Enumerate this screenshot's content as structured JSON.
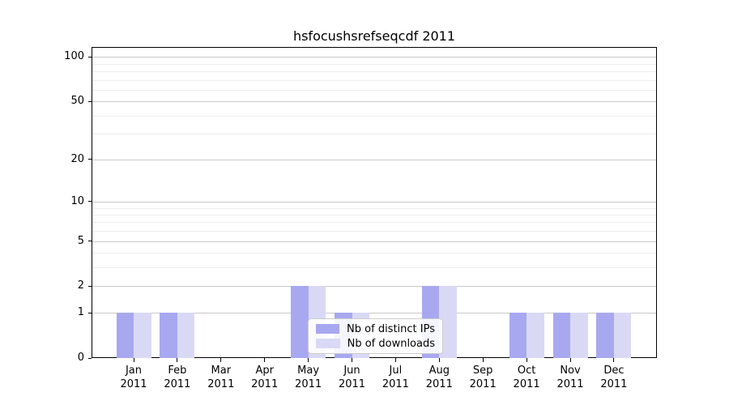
{
  "title": "hsfocushsrefseqcdf 2011",
  "legend": {
    "items": [
      {
        "label": "Nb of distinct IPs",
        "color": "#a8a8f0"
      },
      {
        "label": "Nb of downloads",
        "color": "#d9d9f6"
      }
    ]
  },
  "axes": {
    "y_scale": "log1p",
    "y_major_ticks": [
      0,
      1,
      2,
      5,
      10,
      20,
      50,
      100
    ],
    "y_minor_gridlines": [
      3,
      4,
      6,
      7,
      8,
      9,
      30,
      40,
      60,
      70,
      80,
      90
    ],
    "x_month_labels": [
      "Jan",
      "Feb",
      "Mar",
      "Apr",
      "May",
      "Jun",
      "Jul",
      "Aug",
      "Sep",
      "Oct",
      "Nov",
      "Dec"
    ],
    "x_year_label": "2011"
  },
  "chart_data": {
    "type": "bar",
    "title": "hsfocushsrefseqcdf 2011",
    "categories": [
      "Jan 2011",
      "Feb 2011",
      "Mar 2011",
      "Apr 2011",
      "May 2011",
      "Jun 2011",
      "Jul 2011",
      "Aug 2011",
      "Sep 2011",
      "Oct 2011",
      "Nov 2011",
      "Dec 2011"
    ],
    "series": [
      {
        "name": "Nb of distinct IPs",
        "color": "#a8a8f0",
        "values": [
          1,
          1,
          0,
          0,
          2,
          1,
          0,
          2,
          0,
          1,
          1,
          1
        ]
      },
      {
        "name": "Nb of downloads",
        "color": "#d9d9f6",
        "values": [
          1,
          1,
          0,
          0,
          2,
          1,
          0,
          2,
          0,
          1,
          1,
          1
        ]
      }
    ],
    "xlabel": "",
    "ylabel": "",
    "ylim": [
      0,
      115
    ],
    "y_ticks": [
      0,
      1,
      2,
      5,
      10,
      20,
      50,
      100
    ],
    "grid": "both",
    "legend_position": "lower center, inside plot"
  }
}
